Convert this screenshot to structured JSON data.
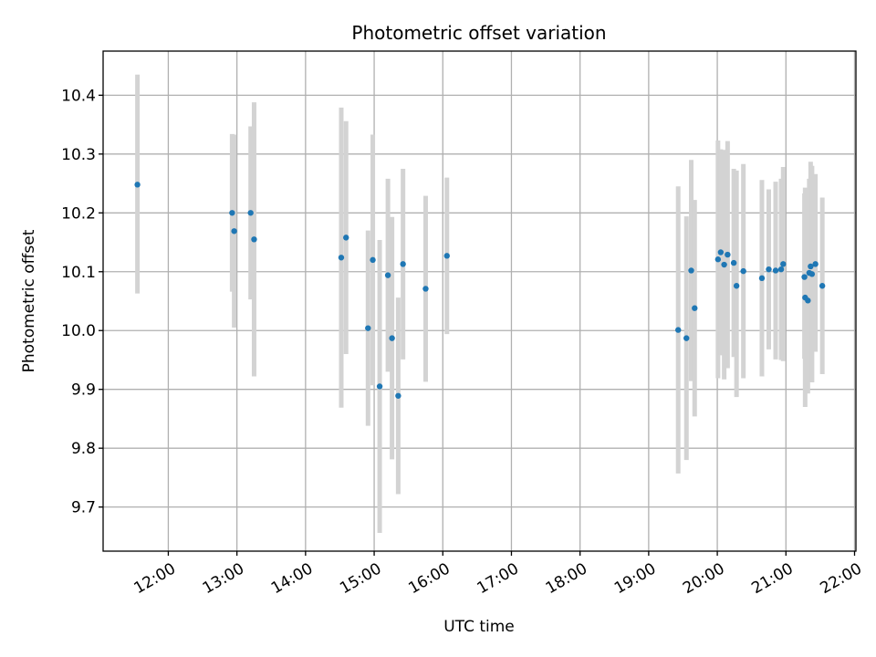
{
  "chart_data": {
    "type": "scatter",
    "title": "Photometric offset variation",
    "xlabel": "UTC time",
    "ylabel": "Photometric offset",
    "x_unit": "hours UTC",
    "xlim": [
      11.05,
      22.02
    ],
    "ylim": [
      9.625,
      10.475
    ],
    "grid": true,
    "x_ticks": [
      {
        "value": 12,
        "label": "12:00"
      },
      {
        "value": 13,
        "label": "13:00"
      },
      {
        "value": 14,
        "label": "14:00"
      },
      {
        "value": 15,
        "label": "15:00"
      },
      {
        "value": 16,
        "label": "16:00"
      },
      {
        "value": 17,
        "label": "17:00"
      },
      {
        "value": 18,
        "label": "18:00"
      },
      {
        "value": 19,
        "label": "19:00"
      },
      {
        "value": 20,
        "label": "20:00"
      },
      {
        "value": 21,
        "label": "21:00"
      },
      {
        "value": 22,
        "label": "22:00"
      }
    ],
    "y_ticks": [
      {
        "value": 9.7,
        "label": "9.7"
      },
      {
        "value": 9.8,
        "label": "9.8"
      },
      {
        "value": 9.9,
        "label": "9.9"
      },
      {
        "value": 10.0,
        "label": "10.0"
      },
      {
        "value": 10.1,
        "label": "10.1"
      },
      {
        "value": 10.2,
        "label": "10.2"
      },
      {
        "value": 10.3,
        "label": "10.3"
      },
      {
        "value": 10.4,
        "label": "10.4"
      }
    ],
    "colors": {
      "point": "#1f77b4",
      "errorbar": "#d3d3d3",
      "grid": "#b0b0b0"
    },
    "points": [
      {
        "x": 11.55,
        "y": 10.248,
        "lo": 10.063,
        "hi": 10.435
      },
      {
        "x": 12.93,
        "y": 10.2,
        "lo": 10.066,
        "hi": 10.334
      },
      {
        "x": 12.96,
        "y": 10.169,
        "lo": 10.005,
        "hi": 10.333
      },
      {
        "x": 13.2,
        "y": 10.2,
        "lo": 10.053,
        "hi": 10.347
      },
      {
        "x": 13.25,
        "y": 10.155,
        "lo": 9.922,
        "hi": 10.388
      },
      {
        "x": 14.52,
        "y": 10.124,
        "lo": 9.869,
        "hi": 10.379
      },
      {
        "x": 14.59,
        "y": 10.158,
        "lo": 9.96,
        "hi": 10.356
      },
      {
        "x": 14.91,
        "y": 10.004,
        "lo": 9.838,
        "hi": 10.17
      },
      {
        "x": 14.98,
        "y": 10.12,
        "lo": 9.907,
        "hi": 10.333
      },
      {
        "x": 15.08,
        "y": 9.905,
        "lo": 9.656,
        "hi": 10.154
      },
      {
        "x": 15.2,
        "y": 10.094,
        "lo": 9.93,
        "hi": 10.258
      },
      {
        "x": 15.26,
        "y": 9.987,
        "lo": 9.781,
        "hi": 10.193
      },
      {
        "x": 15.35,
        "y": 9.889,
        "lo": 9.722,
        "hi": 10.056
      },
      {
        "x": 15.42,
        "y": 10.113,
        "lo": 9.951,
        "hi": 10.275
      },
      {
        "x": 15.75,
        "y": 10.071,
        "lo": 9.913,
        "hi": 10.229
      },
      {
        "x": 16.06,
        "y": 10.127,
        "lo": 9.994,
        "hi": 10.26
      },
      {
        "x": 19.43,
        "y": 10.001,
        "lo": 9.757,
        "hi": 10.245
      },
      {
        "x": 19.55,
        "y": 9.987,
        "lo": 9.78,
        "hi": 10.194
      },
      {
        "x": 19.62,
        "y": 10.102,
        "lo": 9.914,
        "hi": 10.29
      },
      {
        "x": 19.67,
        "y": 10.038,
        "lo": 9.854,
        "hi": 10.222
      },
      {
        "x": 20.01,
        "y": 10.121,
        "lo": 9.919,
        "hi": 10.323
      },
      {
        "x": 20.05,
        "y": 10.133,
        "lo": 9.958,
        "hi": 10.308
      },
      {
        "x": 20.1,
        "y": 10.112,
        "lo": 9.917,
        "hi": 10.307
      },
      {
        "x": 20.15,
        "y": 10.129,
        "lo": 9.936,
        "hi": 10.322
      },
      {
        "x": 20.24,
        "y": 10.115,
        "lo": 9.955,
        "hi": 10.275
      },
      {
        "x": 20.28,
        "y": 10.076,
        "lo": 9.887,
        "hi": 10.272
      },
      {
        "x": 20.38,
        "y": 10.101,
        "lo": 9.919,
        "hi": 10.283
      },
      {
        "x": 20.65,
        "y": 10.089,
        "lo": 9.922,
        "hi": 10.256
      },
      {
        "x": 20.75,
        "y": 10.104,
        "lo": 9.968,
        "hi": 10.24
      },
      {
        "x": 20.85,
        "y": 10.102,
        "lo": 9.951,
        "hi": 10.253
      },
      {
        "x": 20.93,
        "y": 10.104,
        "lo": 9.95,
        "hi": 10.258
      },
      {
        "x": 20.96,
        "y": 10.113,
        "lo": 9.948,
        "hi": 10.278
      },
      {
        "x": 21.27,
        "y": 10.091,
        "lo": 9.952,
        "hi": 10.233
      },
      {
        "x": 21.28,
        "y": 10.056,
        "lo": 9.87,
        "hi": 10.243
      },
      {
        "x": 21.32,
        "y": 10.051,
        "lo": 9.893,
        "hi": 10.209
      },
      {
        "x": 21.34,
        "y": 10.098,
        "lo": 9.937,
        "hi": 10.258
      },
      {
        "x": 21.36,
        "y": 10.109,
        "lo": 9.931,
        "hi": 10.287
      },
      {
        "x": 21.38,
        "y": 10.096,
        "lo": 9.912,
        "hi": 10.28
      },
      {
        "x": 21.43,
        "y": 10.113,
        "lo": 9.964,
        "hi": 10.266
      },
      {
        "x": 21.53,
        "y": 10.076,
        "lo": 9.926,
        "hi": 10.226
      }
    ]
  }
}
